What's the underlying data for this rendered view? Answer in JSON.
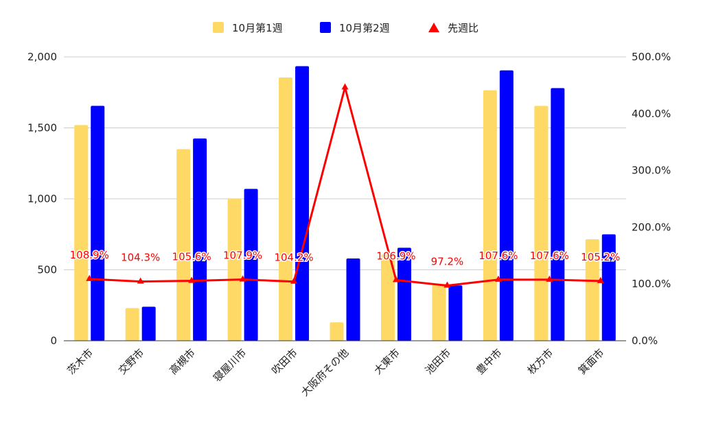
{
  "chart_data": {
    "type": "bar",
    "categories": [
      "茨木市",
      "交野市",
      "高槻市",
      "寝屋川市",
      "吹田市",
      "大阪府その他",
      "大東市",
      "池田市",
      "豊中市",
      "枚方市",
      "箕面市"
    ],
    "series": [
      {
        "name": "10月第1週",
        "kind": "bar",
        "axis": "left",
        "color": "#ffd966",
        "values": [
          1520,
          230,
          1350,
          1000,
          1855,
          130,
          610,
          400,
          1765,
          1655,
          715
        ]
      },
      {
        "name": "10月第2週",
        "kind": "bar",
        "axis": "left",
        "color": "#0000ff",
        "values": [
          1655,
          240,
          1425,
          1070,
          1935,
          580,
          655,
          390,
          1905,
          1780,
          750
        ]
      },
      {
        "name": "先週比",
        "kind": "line",
        "axis": "right",
        "color": "#ff0000",
        "marker": "triangle",
        "values": [
          108.9,
          104.3,
          105.6,
          107.9,
          104.2,
          446.2,
          106.9,
          97.2,
          107.6,
          107.6,
          105.2
        ],
        "labels": [
          "108.9%",
          "104.3%",
          "105.6%",
          "107.9%",
          "104.2%",
          "",
          "106.9%",
          "97.2%",
          "107.6%",
          "107.6%",
          "105.2%"
        ]
      }
    ],
    "y_left": {
      "min": 0,
      "max": 2000,
      "ticks": [
        "0",
        "500",
        "1,000",
        "1,500",
        "2,000"
      ]
    },
    "y_right": {
      "min": 0,
      "max": 500,
      "ticks": [
        "0.0%",
        "100.0%",
        "200.0%",
        "300.0%",
        "400.0%",
        "500.0%"
      ]
    },
    "grid": true,
    "legend_position": "top-center"
  }
}
